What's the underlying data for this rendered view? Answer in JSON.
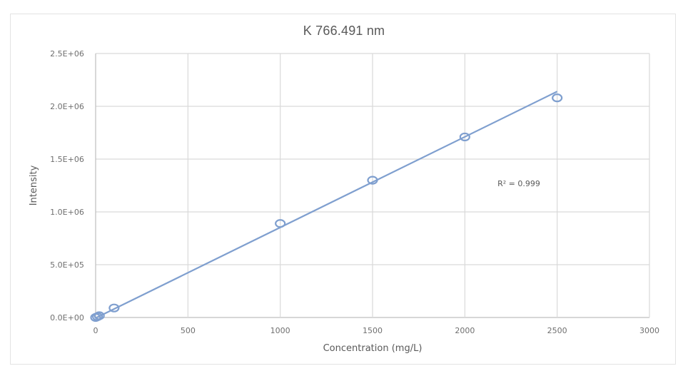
{
  "chart_data": {
    "type": "scatter",
    "title": "K 766.491 nm",
    "xlabel": "Concentration (mg/L)",
    "ylabel": "Intensity",
    "xlim": [
      0,
      3000
    ],
    "ylim": [
      0,
      2500000
    ],
    "x_ticks": [
      0,
      500,
      1000,
      1500,
      2000,
      2500,
      3000
    ],
    "x_tick_labels": [
      "0",
      "500",
      "1000",
      "1500",
      "2000",
      "2500",
      "3000"
    ],
    "y_ticks": [
      0,
      500000,
      1000000,
      1500000,
      2000000,
      2500000
    ],
    "y_tick_labels": [
      "0.0E+00",
      "5.0E+05",
      "1.0E+06",
      "1.5E+06",
      "2.0E+06",
      "2.5E+06"
    ],
    "grid": true,
    "legend": "none",
    "series": [
      {
        "name": "K 766.491 nm",
        "marker": "open-circle",
        "x": [
          0,
          10,
          20,
          100,
          1000,
          1500,
          2000,
          2500
        ],
        "y": [
          0,
          8000,
          17000,
          90000,
          890000,
          1300000,
          1710000,
          2080000
        ]
      }
    ],
    "trendline": {
      "type": "linear",
      "x_range": [
        0,
        2500
      ],
      "y_range": [
        -5000,
        2140000
      ],
      "annotation": "R² = 0.999",
      "annotation_position": {
        "x": 2200,
        "y": 1270000
      }
    },
    "colors": {
      "series": "#7f9fcf",
      "trendline": "#7f9fcf",
      "grid": "#d9d9d9",
      "axis": "#bfbfbf",
      "text": "#595959"
    }
  }
}
